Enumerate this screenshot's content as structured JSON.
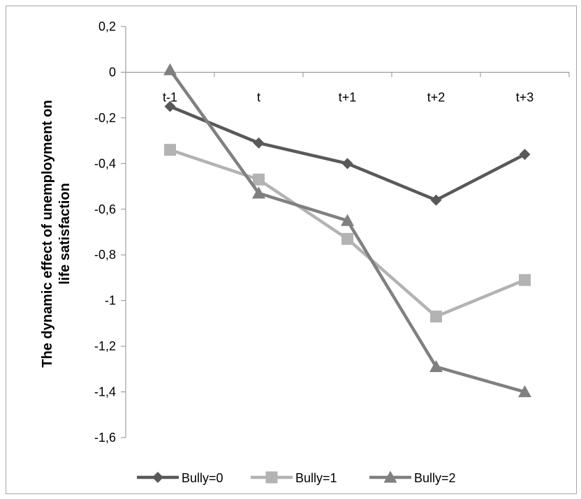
{
  "chart_data": {
    "type": "line",
    "ylabel": "The dynamic effect of unemployment on life satisfaction",
    "ylim": [
      -1.6,
      0.2
    ],
    "yticks": [
      "0,2",
      "0",
      "-0,2",
      "-0,4",
      "-0,6",
      "-0,8",
      "-1",
      "-1,2",
      "-1,4",
      "-1,6"
    ],
    "ytick_values": [
      0.2,
      0,
      -0.2,
      -0.4,
      -0.6,
      -0.8,
      -1.0,
      -1.2,
      -1.4,
      -1.6
    ],
    "categories": [
      "t-1",
      "t",
      "t+1",
      "t+2",
      "t+3"
    ],
    "grid": false,
    "legend_position": "bottom",
    "series": [
      {
        "name": "Bully=0",
        "marker": "diamond",
        "color": "#595959",
        "values": [
          -0.15,
          -0.31,
          -0.4,
          -0.56,
          -0.36
        ]
      },
      {
        "name": "Bully=1",
        "marker": "square",
        "color": "#b3b3b3",
        "values": [
          -0.34,
          -0.47,
          -0.73,
          -1.07,
          -0.91
        ]
      },
      {
        "name": "Bully=2",
        "marker": "triangle",
        "color": "#808080",
        "values": [
          0.01,
          -0.53,
          -0.65,
          -1.29,
          -1.4
        ]
      }
    ]
  }
}
